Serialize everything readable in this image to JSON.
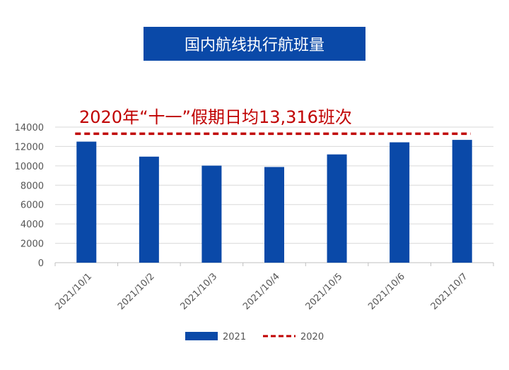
{
  "title": "国内航线执行航班量",
  "chart_data": {
    "type": "bar",
    "categories": [
      "2021/10/1",
      "2021/10/2",
      "2021/10/3",
      "2021/10/4",
      "2021/10/5",
      "2021/10/6",
      "2021/10/7"
    ],
    "series": [
      {
        "name": "2021",
        "type": "bar",
        "color": "#0a49a8",
        "values": [
          12500,
          10950,
          10020,
          9880,
          11180,
          12430,
          12680
        ]
      },
      {
        "name": "2020",
        "type": "line",
        "style": "dashed",
        "color": "#c00000",
        "value": 13316
      }
    ],
    "annotation": "2020年“十一”假期日均13,316班次",
    "ylim": [
      0,
      14000
    ],
    "yticks": [
      0,
      2000,
      4000,
      6000,
      8000,
      10000,
      12000,
      14000
    ],
    "grid": true,
    "legend_position": "bottom"
  }
}
